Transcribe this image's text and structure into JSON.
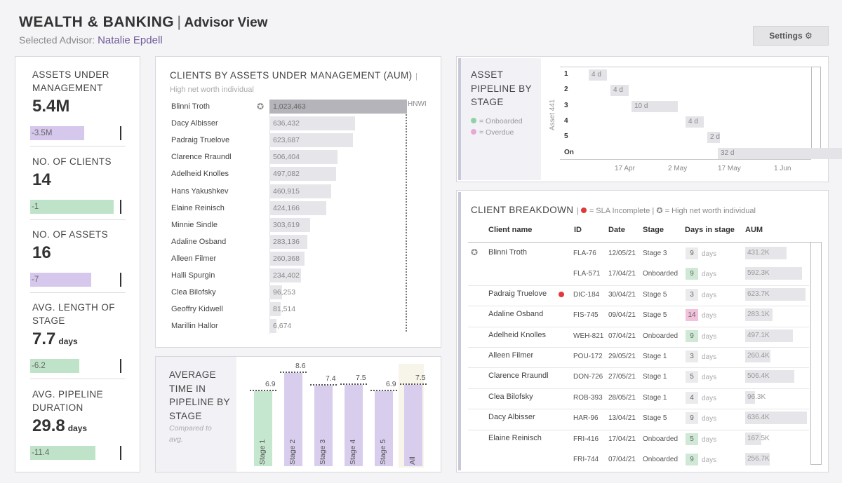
{
  "header": {
    "title": "WEALTH & BANKING",
    "separator": "|",
    "subtitle": "Advisor View",
    "selected_prefix": "Selected Advisor:",
    "advisor": "Natalie Epdell",
    "settings_label": "Settings ⚙"
  },
  "kpis": [
    {
      "label": "ASSETS UNDER MANAGEMENT",
      "value": "5.4M",
      "unit": "",
      "delta": "-3.5M",
      "color": "purple",
      "fraction": 0.6
    },
    {
      "label": "NO. OF CLIENTS",
      "value": "14",
      "unit": "",
      "delta": "-1",
      "color": "green",
      "fraction": 0.93
    },
    {
      "label": "NO. OF ASSETS",
      "value": "16",
      "unit": "",
      "delta": "-7",
      "color": "purple",
      "fraction": 0.68
    },
    {
      "label": "AVG. LENGTH OF STAGE",
      "value": "7.7",
      "unit": "days",
      "delta": "-6.2",
      "color": "green",
      "fraction": 0.55
    },
    {
      "label": "AVG. PIPELINE DURATION",
      "value": "29.8",
      "unit": "days",
      "delta": "-11.4",
      "color": "green",
      "fraction": 0.73
    }
  ],
  "aum_chart": {
    "title": "CLIENTS BY ASSETS UNDER MANAGEMENT (AUM)",
    "note_sep": "|",
    "note": "High net worth individual",
    "hnwi_label": "HNWI",
    "hnwi_icon": "star-badge-icon",
    "clients": [
      {
        "name": "Blinni Troth",
        "value": "1,023,463",
        "amount": 1023463,
        "hnwi": true
      },
      {
        "name": "Dacy Albisser",
        "value": "636,432",
        "amount": 636432
      },
      {
        "name": "Padraig Truelove",
        "value": "623,687",
        "amount": 623687
      },
      {
        "name": "Clarence Rraundl",
        "value": "506,404",
        "amount": 506404
      },
      {
        "name": "Adelheid Knolles",
        "value": "497,082",
        "amount": 497082
      },
      {
        "name": "Hans Yakushkev",
        "value": "460,915",
        "amount": 460915
      },
      {
        "name": "Elaine Reinisch",
        "value": "424,166",
        "amount": 424166
      },
      {
        "name": "Minnie Sindle",
        "value": "303,619",
        "amount": 303619
      },
      {
        "name": "Adaline Osband",
        "value": "283,136",
        "amount": 283136
      },
      {
        "name": "Alleen Filmer",
        "value": "260,368",
        "amount": 260368
      },
      {
        "name": "Halli Spurgin",
        "value": "234,402",
        "amount": 234402
      },
      {
        "name": "Clea Bilofsky",
        "value": "96,253",
        "amount": 96253
      },
      {
        "name": "Geoffry Kidwell",
        "value": "81,514",
        "amount": 81514
      },
      {
        "name": "Marillin Hallor",
        "value": "6,674",
        "amount": 6674
      }
    ]
  },
  "pipeline_avg": {
    "title": "AVERAGE TIME IN PIPELINE BY STAGE",
    "note": "Compared to avg.",
    "stages": [
      {
        "label": "Stage 1",
        "value": "6.9",
        "amount": 6.9,
        "color": "green"
      },
      {
        "label": "Stage 2",
        "value": "8.6",
        "amount": 8.6,
        "color": "purple"
      },
      {
        "label": "Stage 3",
        "value": "7.4",
        "amount": 7.4,
        "color": "purple"
      },
      {
        "label": "Stage 4",
        "value": "7.5",
        "amount": 7.5,
        "color": "purple"
      },
      {
        "label": "Stage 5",
        "value": "6.9",
        "amount": 6.9,
        "color": "purple"
      },
      {
        "label": "All",
        "value": "7.5",
        "amount": 7.5,
        "color": "purple"
      }
    ]
  },
  "asset_pipeline": {
    "title": "ASSET PIPELINE BY STAGE",
    "legend_onboarded": "= Onboarded",
    "legend_overdue": "= Overdue",
    "asset_label": "Asset 441",
    "rows": [
      {
        "stage": "1",
        "days": "4 d",
        "start": 0,
        "length": 4
      },
      {
        "stage": "2",
        "days": "4 d",
        "start": 4,
        "length": 4
      },
      {
        "stage": "3",
        "days": "10 d",
        "start": 8,
        "length": 10
      },
      {
        "stage": "4",
        "days": "4 d",
        "start": 18,
        "length": 4
      },
      {
        "stage": "5",
        "days": "2 d",
        "start": 22,
        "length": 2
      },
      {
        "stage": "On",
        "days": "32 d",
        "start": 24,
        "length": 32
      }
    ],
    "x_ticks": [
      "17 Apr",
      "2 May",
      "17 May",
      "1 Jun"
    ]
  },
  "breakdown": {
    "title": "CLIENT BREAKDOWN",
    "legend_sla": "= SLA Incomplete",
    "legend_hnwi": "= High net worth individual",
    "columns": [
      "Client name",
      "ID",
      "Date",
      "Stage",
      "Days in stage",
      "AUM"
    ],
    "days_unit": "days",
    "colors": {
      "sla": "#e0383b",
      "warn": "#f2c2dc",
      "ok": "#cfe9d6"
    },
    "rows": [
      {
        "name": "Blinni Troth",
        "hnwi": true,
        "sla": false,
        "id": "FLA-76",
        "date": "12/05/21",
        "stage": "Stage 3",
        "days": "9",
        "days_color": "none",
        "aum": "431.2K",
        "aum_amount": 431.2
      },
      {
        "name": "",
        "hnwi": false,
        "sla": false,
        "id": "FLA-571",
        "date": "17/04/21",
        "stage": "Onboarded",
        "days": "9",
        "days_color": "ok",
        "aum": "592.3K",
        "aum_amount": 592.3
      },
      {
        "name": "Padraig Truelove",
        "hnwi": false,
        "sla": true,
        "id": "DIC-184",
        "date": "30/04/21",
        "stage": "Stage 5",
        "days": "3",
        "days_color": "none",
        "aum": "623.7K",
        "aum_amount": 623.7
      },
      {
        "name": "Adaline Osband",
        "hnwi": false,
        "sla": false,
        "id": "FIS-745",
        "date": "09/04/21",
        "stage": "Stage 5",
        "days": "14",
        "days_color": "warn",
        "aum": "283.1K",
        "aum_amount": 283.1
      },
      {
        "name": "Adelheid Knolles",
        "hnwi": false,
        "sla": false,
        "id": "WEH-821",
        "date": "07/04/21",
        "stage": "Onboarded",
        "days": "9",
        "days_color": "ok",
        "aum": "497.1K",
        "aum_amount": 497.1
      },
      {
        "name": "Alleen Filmer",
        "hnwi": false,
        "sla": false,
        "id": "POU-172",
        "date": "29/05/21",
        "stage": "Stage 1",
        "days": "3",
        "days_color": "none",
        "aum": "260.4K",
        "aum_amount": 260.4
      },
      {
        "name": "Clarence Rraundl",
        "hnwi": false,
        "sla": false,
        "id": "DON-726",
        "date": "27/05/21",
        "stage": "Stage 1",
        "days": "5",
        "days_color": "none",
        "aum": "506.4K",
        "aum_amount": 506.4
      },
      {
        "name": "Clea Bilofsky",
        "hnwi": false,
        "sla": false,
        "id": "ROB-393",
        "date": "28/05/21",
        "stage": "Stage 1",
        "days": "4",
        "days_color": "none",
        "aum": "96.3K",
        "aum_amount": 96.3
      },
      {
        "name": "Dacy Albisser",
        "hnwi": false,
        "sla": false,
        "id": "HAR-96",
        "date": "13/04/21",
        "stage": "Stage 5",
        "days": "9",
        "days_color": "none",
        "aum": "636.4K",
        "aum_amount": 636.4
      },
      {
        "name": "Elaine Reinisch",
        "hnwi": false,
        "sla": false,
        "id": "FRI-416",
        "date": "17/04/21",
        "stage": "Onboarded",
        "days": "5",
        "days_color": "ok",
        "aum": "167.5K",
        "aum_amount": 167.5
      },
      {
        "name": "",
        "hnwi": false,
        "sla": false,
        "id": "FRI-744",
        "date": "07/04/21",
        "stage": "Onboarded",
        "days": "9",
        "days_color": "ok",
        "aum": "256.7K",
        "aum_amount": 256.7
      }
    ]
  }
}
